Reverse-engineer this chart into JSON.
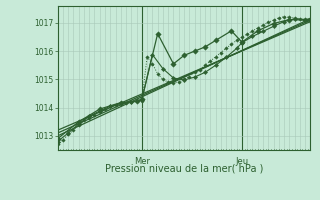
{
  "bg_color": "#c8ead8",
  "plot_bg_color": "#c8ead8",
  "grid_color": "#a8c8b8",
  "line_color": "#2d6030",
  "text_color": "#2d6030",
  "xlabel": "Pression niveau de la mer( hPa )",
  "ylim": [
    1012.5,
    1017.6
  ],
  "yticks": [
    1013,
    1014,
    1015,
    1016,
    1017
  ],
  "xlim": [
    0,
    96
  ],
  "day_labels": [
    "Mer",
    "Jeu"
  ],
  "day_positions": [
    32,
    70
  ],
  "num_minor_xticks": 96,
  "figsize": [
    3.2,
    2.0
  ],
  "dpi": 100,
  "series": [
    {
      "x": [
        0,
        2,
        4,
        6,
        8,
        10,
        12,
        14,
        16,
        18,
        20,
        22,
        24,
        26,
        28,
        30,
        32,
        34,
        36,
        38,
        40,
        42,
        44,
        46,
        48,
        50,
        52,
        54,
        56,
        58,
        60,
        62,
        64,
        66,
        68,
        70,
        72,
        74,
        76,
        78,
        80,
        82,
        84,
        86,
        88,
        90,
        92,
        94,
        96
      ],
      "y": [
        1012.7,
        1012.85,
        1013.05,
        1013.2,
        1013.4,
        1013.55,
        1013.65,
        1013.75,
        1013.85,
        1013.95,
        1014.05,
        1014.1,
        1014.15,
        1014.18,
        1014.2,
        1014.22,
        1014.25,
        1015.8,
        1015.55,
        1015.2,
        1015.0,
        1014.9,
        1014.88,
        1014.9,
        1015.0,
        1015.1,
        1015.25,
        1015.35,
        1015.5,
        1015.65,
        1015.8,
        1015.95,
        1016.1,
        1016.25,
        1016.38,
        1016.5,
        1016.6,
        1016.72,
        1016.82,
        1016.92,
        1017.02,
        1017.1,
        1017.18,
        1017.22,
        1017.2,
        1017.18,
        1017.15,
        1017.12,
        1017.15
      ],
      "style": "dotted",
      "marker": "D",
      "markersize": 1.8,
      "lw": 0.7
    },
    {
      "x": [
        0,
        4,
        8,
        12,
        16,
        20,
        24,
        28,
        32,
        36,
        40,
        44,
        48,
        52,
        56,
        60,
        64,
        68,
        70,
        74,
        78,
        82,
        86,
        90,
        94,
        96
      ],
      "y": [
        1012.8,
        1013.1,
        1013.42,
        1013.7,
        1013.88,
        1014.05,
        1014.15,
        1014.2,
        1014.28,
        1015.88,
        1015.38,
        1015.05,
        1014.98,
        1015.08,
        1015.25,
        1015.5,
        1015.78,
        1016.1,
        1016.3,
        1016.52,
        1016.7,
        1016.88,
        1017.05,
        1017.15,
        1017.12,
        1017.15
      ],
      "style": "solid",
      "marker": "D",
      "markersize": 2.2,
      "lw": 0.8
    },
    {
      "x": [
        0,
        8,
        16,
        24,
        30,
        32,
        38,
        44,
        48,
        52,
        56,
        60,
        66,
        70,
        76,
        82,
        88,
        94,
        96
      ],
      "y": [
        1012.9,
        1013.5,
        1013.95,
        1014.18,
        1014.22,
        1014.3,
        1016.62,
        1015.55,
        1015.85,
        1016.0,
        1016.15,
        1016.38,
        1016.72,
        1016.32,
        1016.72,
        1016.98,
        1017.12,
        1017.1,
        1017.12
      ],
      "style": "solid",
      "marker": "D",
      "markersize": 2.8,
      "lw": 0.9
    },
    {
      "x": [
        0,
        96
      ],
      "y": [
        1013.0,
        1017.15
      ],
      "style": "solid",
      "marker": null,
      "markersize": 0,
      "lw": 0.9
    },
    {
      "x": [
        0,
        96
      ],
      "y": [
        1013.1,
        1017.1
      ],
      "style": "solid",
      "marker": null,
      "markersize": 0,
      "lw": 0.9
    },
    {
      "x": [
        0,
        96
      ],
      "y": [
        1013.2,
        1017.05
      ],
      "style": "solid",
      "marker": null,
      "markersize": 0,
      "lw": 0.9
    }
  ]
}
